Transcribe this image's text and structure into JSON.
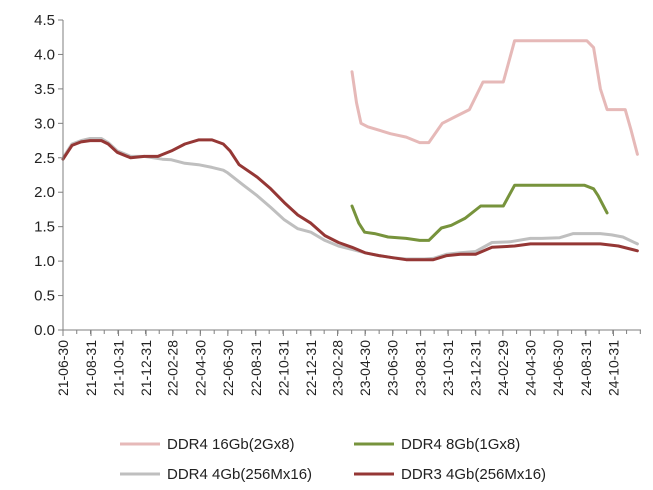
{
  "chart_data": {
    "type": "line",
    "title": "",
    "xlabel": "",
    "ylabel": "",
    "ylim": [
      0,
      4.5
    ],
    "yticks": [
      "0.0",
      "0.5",
      "1.0",
      "1.5",
      "2.0",
      "2.5",
      "3.0",
      "3.5",
      "4.0",
      "4.5"
    ],
    "x_range_days": [
      0,
      1280
    ],
    "xticks": [
      {
        "label": "21-06-30",
        "day": 0
      },
      {
        "label": "21-08-31",
        "day": 62
      },
      {
        "label": "21-10-31",
        "day": 123
      },
      {
        "label": "21-12-31",
        "day": 184
      },
      {
        "label": "22-02-28",
        "day": 243
      },
      {
        "label": "22-04-30",
        "day": 304
      },
      {
        "label": "22-06-30",
        "day": 365
      },
      {
        "label": "22-08-31",
        "day": 427
      },
      {
        "label": "22-10-31",
        "day": 488
      },
      {
        "label": "22-12-31",
        "day": 549
      },
      {
        "label": "23-02-28",
        "day": 608
      },
      {
        "label": "23-04-30",
        "day": 669
      },
      {
        "label": "23-06-30",
        "day": 730
      },
      {
        "label": "23-08-31",
        "day": 792
      },
      {
        "label": "23-10-31",
        "day": 853
      },
      {
        "label": "23-12-31",
        "day": 914
      },
      {
        "label": "24-02-29",
        "day": 974
      },
      {
        "label": "24-04-30",
        "day": 1035
      },
      {
        "label": "24-06-30",
        "day": 1096
      },
      {
        "label": "24-08-31",
        "day": 1158
      },
      {
        "label": "24-10-31",
        "day": 1219
      }
    ],
    "series": [
      {
        "name": "DDR4 16Gb(2Gx8)",
        "color": "#e6b9b8",
        "points": [
          [
            640,
            3.75
          ],
          [
            650,
            3.3
          ],
          [
            660,
            3.0
          ],
          [
            675,
            2.95
          ],
          [
            700,
            2.9
          ],
          [
            725,
            2.85
          ],
          [
            760,
            2.8
          ],
          [
            790,
            2.72
          ],
          [
            810,
            2.72
          ],
          [
            840,
            3.0
          ],
          [
            870,
            3.1
          ],
          [
            900,
            3.2
          ],
          [
            930,
            3.6
          ],
          [
            975,
            3.6
          ],
          [
            1000,
            4.2
          ],
          [
            1100,
            4.2
          ],
          [
            1160,
            4.2
          ],
          [
            1175,
            4.1
          ],
          [
            1190,
            3.5
          ],
          [
            1205,
            3.2
          ],
          [
            1225,
            3.2
          ],
          [
            1245,
            3.2
          ],
          [
            1258,
            2.9
          ],
          [
            1272,
            2.55
          ]
        ]
      },
      {
        "name": "DDR4 8Gb(1Gx8)",
        "color": "#77933c",
        "points": [
          [
            640,
            1.8
          ],
          [
            655,
            1.55
          ],
          [
            668,
            1.42
          ],
          [
            690,
            1.4
          ],
          [
            720,
            1.35
          ],
          [
            760,
            1.33
          ],
          [
            790,
            1.3
          ],
          [
            810,
            1.3
          ],
          [
            838,
            1.48
          ],
          [
            860,
            1.52
          ],
          [
            890,
            1.62
          ],
          [
            925,
            1.8
          ],
          [
            975,
            1.8
          ],
          [
            1000,
            2.1
          ],
          [
            1100,
            2.1
          ],
          [
            1155,
            2.1
          ],
          [
            1175,
            2.05
          ],
          [
            1185,
            1.95
          ],
          [
            1205,
            1.7
          ]
        ]
      },
      {
        "name": "DDR4 4Gb(256Mx16)",
        "color": "#bfbfbf",
        "points": [
          [
            0,
            2.5
          ],
          [
            20,
            2.7
          ],
          [
            40,
            2.75
          ],
          [
            60,
            2.78
          ],
          [
            85,
            2.78
          ],
          [
            100,
            2.72
          ],
          [
            120,
            2.6
          ],
          [
            150,
            2.52
          ],
          [
            180,
            2.52
          ],
          [
            200,
            2.5
          ],
          [
            220,
            2.48
          ],
          [
            240,
            2.47
          ],
          [
            270,
            2.42
          ],
          [
            300,
            2.4
          ],
          [
            330,
            2.36
          ],
          [
            355,
            2.32
          ],
          [
            365,
            2.28
          ],
          [
            400,
            2.1
          ],
          [
            430,
            1.95
          ],
          [
            460,
            1.78
          ],
          [
            490,
            1.6
          ],
          [
            520,
            1.47
          ],
          [
            549,
            1.42
          ],
          [
            580,
            1.3
          ],
          [
            610,
            1.22
          ],
          [
            640,
            1.17
          ],
          [
            669,
            1.12
          ],
          [
            700,
            1.08
          ],
          [
            730,
            1.05
          ],
          [
            760,
            1.03
          ],
          [
            800,
            1.03
          ],
          [
            820,
            1.04
          ],
          [
            850,
            1.1
          ],
          [
            880,
            1.12
          ],
          [
            914,
            1.14
          ],
          [
            950,
            1.27
          ],
          [
            990,
            1.28
          ],
          [
            1035,
            1.33
          ],
          [
            1060,
            1.33
          ],
          [
            1100,
            1.34
          ],
          [
            1130,
            1.4
          ],
          [
            1160,
            1.4
          ],
          [
            1190,
            1.4
          ],
          [
            1215,
            1.38
          ],
          [
            1240,
            1.35
          ],
          [
            1272,
            1.25
          ]
        ]
      },
      {
        "name": "DDR3 4Gb(256Mx16)",
        "color": "#953735",
        "points": [
          [
            0,
            2.48
          ],
          [
            20,
            2.68
          ],
          [
            40,
            2.73
          ],
          [
            60,
            2.75
          ],
          [
            85,
            2.75
          ],
          [
            100,
            2.7
          ],
          [
            120,
            2.58
          ],
          [
            150,
            2.5
          ],
          [
            180,
            2.52
          ],
          [
            210,
            2.52
          ],
          [
            240,
            2.6
          ],
          [
            270,
            2.7
          ],
          [
            300,
            2.76
          ],
          [
            330,
            2.76
          ],
          [
            355,
            2.7
          ],
          [
            370,
            2.6
          ],
          [
            390,
            2.4
          ],
          [
            430,
            2.22
          ],
          [
            460,
            2.05
          ],
          [
            490,
            1.85
          ],
          [
            520,
            1.67
          ],
          [
            549,
            1.55
          ],
          [
            580,
            1.37
          ],
          [
            610,
            1.27
          ],
          [
            640,
            1.2
          ],
          [
            669,
            1.12
          ],
          [
            700,
            1.08
          ],
          [
            730,
            1.05
          ],
          [
            760,
            1.02
          ],
          [
            800,
            1.02
          ],
          [
            820,
            1.02
          ],
          [
            850,
            1.08
          ],
          [
            880,
            1.1
          ],
          [
            914,
            1.1
          ],
          [
            950,
            1.2
          ],
          [
            1000,
            1.22
          ],
          [
            1035,
            1.25
          ],
          [
            1100,
            1.25
          ],
          [
            1160,
            1.25
          ],
          [
            1190,
            1.25
          ],
          [
            1230,
            1.22
          ],
          [
            1272,
            1.15
          ]
        ]
      }
    ],
    "legend": [
      {
        "label": "DDR4 16Gb(2Gx8)",
        "color": "#e6b9b8",
        "position": "bottom-left"
      },
      {
        "label": "DDR4 8Gb(1Gx8)",
        "color": "#77933c",
        "position": "bottom-right"
      },
      {
        "label": "DDR4 4Gb(256Mx16)",
        "color": "#bfbfbf",
        "position": "bottom-left"
      },
      {
        "label": "DDR3 4Gb(256Mx16)",
        "color": "#953735",
        "position": "bottom-right"
      }
    ]
  }
}
